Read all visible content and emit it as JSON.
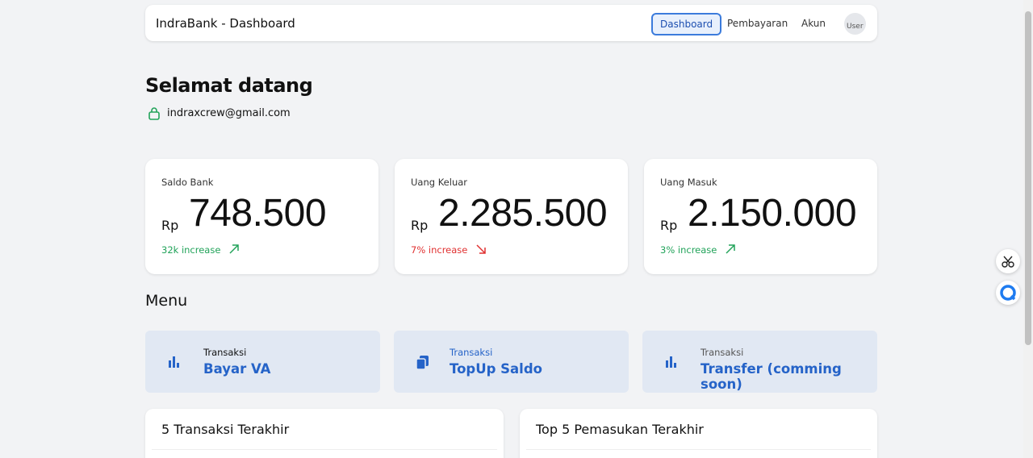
{
  "header": {
    "title": "IndraBank - Dashboard",
    "nav": [
      "Dashboard",
      "Pembayaran",
      "Akun"
    ],
    "avatar_alt": "User"
  },
  "welcome": {
    "title": "Selamat datang",
    "email": "indraxcrew@gmail.com"
  },
  "stats": [
    {
      "label": "Saldo Bank",
      "currency": "Rp",
      "value": "748.500",
      "change": "32k increase"
    },
    {
      "label": "Uang Keluar",
      "currency": "Rp",
      "value": "2.285.500",
      "change": "7% increase"
    },
    {
      "label": "Uang Masuk",
      "currency": "Rp",
      "value": "2.150.000",
      "change": "3% increase"
    }
  ],
  "menu": {
    "title": "Menu",
    "items": [
      {
        "caption": "Transaksi",
        "label": "Bayar VA"
      },
      {
        "caption": "Transaksi",
        "label": "TopUp Saldo"
      },
      {
        "caption": "Transaksi",
        "label": "Transfer (comming soon)"
      }
    ]
  },
  "panels": [
    "5 Transaksi Terakhir",
    "Top 5 Pemasukan Terakhir"
  ]
}
